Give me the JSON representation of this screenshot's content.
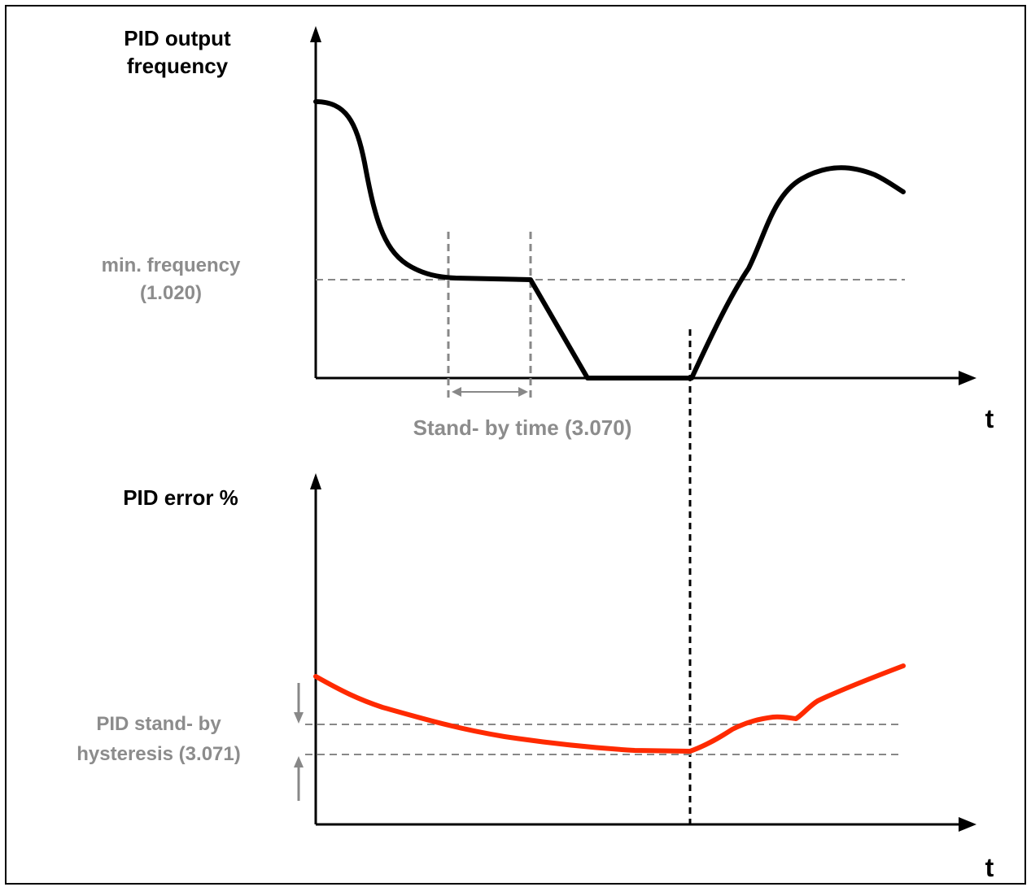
{
  "top_chart": {
    "y_label_line1": "PID output",
    "y_label_line2": "frequency",
    "x_label": "t",
    "min_freq_line1": "min. frequency",
    "min_freq_line2": "(1.020)",
    "standby_label": "Stand- by time (3.070)"
  },
  "bottom_chart": {
    "y_label": "PID error %",
    "x_label": "t",
    "hysteresis_line1": "PID stand- by",
    "hysteresis_line2": "hysteresis (3.071)"
  },
  "colors": {
    "curve_top": "#000000",
    "curve_bottom": "#ff2a00",
    "guide": "#888888",
    "label_gray": "#8c8c8c"
  }
}
